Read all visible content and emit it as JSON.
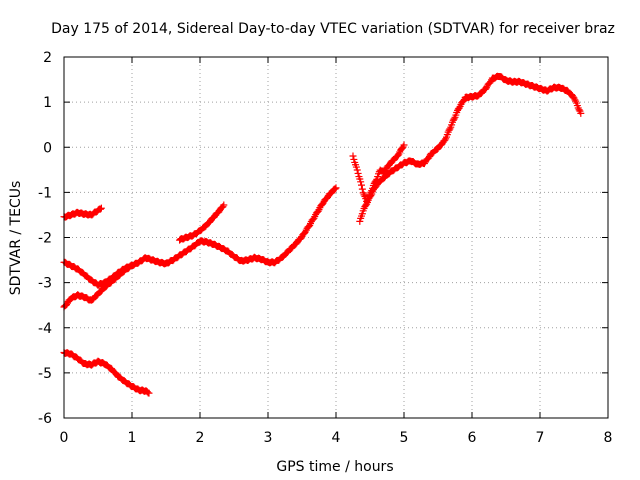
{
  "chart_data": {
    "type": "scatter",
    "title": "Day 175 of 2014, Sidereal Day-to-day VTEC variation (SDTVAR) for receiver braz",
    "xlabel": "GPS time / hours",
    "ylabel": "SDTVAR / TECUs",
    "xlim": [
      0,
      8
    ],
    "ylim": [
      -6,
      2
    ],
    "x_ticks": [
      0,
      1,
      2,
      3,
      4,
      5,
      6,
      7,
      8
    ],
    "y_ticks": [
      -6,
      -5,
      -4,
      -3,
      -2,
      -1,
      0,
      1,
      2
    ],
    "x_tick_labels": [
      "0",
      "1",
      "2",
      "3",
      "4",
      "5",
      "6",
      "7",
      "8"
    ],
    "y_tick_labels": [
      "-6",
      "-5",
      "-4",
      "-3",
      "-2",
      "-1",
      "0",
      "1",
      "2"
    ],
    "grid": true,
    "grid_style": "dotted",
    "marker": "plus",
    "color": "#ff0000",
    "series": [
      {
        "points": [
          [
            0.0,
            -2.55
          ],
          [
            0.1,
            -2.62
          ],
          [
            0.2,
            -2.7
          ],
          [
            0.3,
            -2.82
          ],
          [
            0.4,
            -2.95
          ],
          [
            0.5,
            -3.05
          ],
          [
            0.6,
            -3.0
          ],
          [
            0.7,
            -2.9
          ],
          [
            0.8,
            -2.78
          ],
          [
            0.9,
            -2.68
          ],
          [
            1.0,
            -2.62
          ],
          [
            1.1,
            -2.55
          ],
          [
            1.2,
            -2.45
          ],
          [
            1.3,
            -2.5
          ],
          [
            1.4,
            -2.55
          ],
          [
            1.5,
            -2.58
          ],
          [
            1.6,
            -2.5
          ],
          [
            1.7,
            -2.4
          ],
          [
            1.8,
            -2.3
          ],
          [
            1.9,
            -2.2
          ],
          [
            2.0,
            -2.08
          ],
          [
            2.1,
            -2.1
          ],
          [
            2.2,
            -2.15
          ],
          [
            2.3,
            -2.22
          ],
          [
            2.4,
            -2.3
          ],
          [
            2.5,
            -2.42
          ],
          [
            2.6,
            -2.52
          ],
          [
            2.7,
            -2.5
          ],
          [
            2.8,
            -2.45
          ],
          [
            2.9,
            -2.48
          ],
          [
            3.0,
            -2.55
          ],
          [
            3.1,
            -2.55
          ],
          [
            3.2,
            -2.45
          ],
          [
            3.3,
            -2.3
          ],
          [
            3.4,
            -2.15
          ],
          [
            3.5,
            -1.98
          ],
          [
            3.6,
            -1.75
          ],
          [
            3.7,
            -1.5
          ],
          [
            3.8,
            -1.25
          ],
          [
            3.9,
            -1.05
          ],
          [
            4.0,
            -0.9
          ]
        ]
      },
      {
        "points": [
          [
            0.0,
            -3.55
          ],
          [
            0.05,
            -3.45
          ],
          [
            0.1,
            -3.35
          ],
          [
            0.2,
            -3.28
          ],
          [
            0.3,
            -3.32
          ],
          [
            0.4,
            -3.4
          ],
          [
            0.5,
            -3.25
          ],
          [
            0.6,
            -3.1
          ],
          [
            0.7,
            -2.98
          ],
          [
            0.8,
            -2.85
          ],
          [
            0.9,
            -2.72
          ],
          [
            1.0,
            -2.62
          ]
        ]
      },
      {
        "points": [
          [
            0.0,
            -1.55
          ],
          [
            0.1,
            -1.5
          ],
          [
            0.2,
            -1.45
          ],
          [
            0.3,
            -1.48
          ],
          [
            0.4,
            -1.5
          ],
          [
            0.45,
            -1.45
          ],
          [
            0.55,
            -1.35
          ]
        ]
      },
      {
        "points": [
          [
            0.0,
            -4.55
          ],
          [
            0.1,
            -4.58
          ],
          [
            0.2,
            -4.68
          ],
          [
            0.3,
            -4.8
          ],
          [
            0.4,
            -4.82
          ],
          [
            0.5,
            -4.75
          ],
          [
            0.6,
            -4.8
          ],
          [
            0.7,
            -4.92
          ],
          [
            0.8,
            -5.08
          ],
          [
            0.9,
            -5.2
          ],
          [
            1.0,
            -5.3
          ],
          [
            1.1,
            -5.38
          ],
          [
            1.2,
            -5.4
          ],
          [
            1.25,
            -5.45
          ]
        ]
      },
      {
        "points": [
          [
            1.7,
            -2.05
          ],
          [
            1.8,
            -2.0
          ],
          [
            1.9,
            -1.95
          ],
          [
            2.0,
            -1.85
          ],
          [
            2.1,
            -1.72
          ],
          [
            2.2,
            -1.55
          ],
          [
            2.3,
            -1.38
          ],
          [
            2.35,
            -1.28
          ]
        ]
      },
      {
        "points": [
          [
            4.25,
            -0.2
          ],
          [
            4.3,
            -0.45
          ],
          [
            4.35,
            -0.7
          ],
          [
            4.4,
            -1.0
          ],
          [
            4.45,
            -1.2
          ],
          [
            4.5,
            -1.05
          ],
          [
            4.55,
            -0.85
          ],
          [
            4.6,
            -0.7
          ],
          [
            4.65,
            -0.5
          ],
          [
            4.7,
            -0.55
          ],
          [
            4.75,
            -0.45
          ],
          [
            4.8,
            -0.35
          ],
          [
            4.9,
            -0.2
          ],
          [
            5.0,
            0.05
          ]
        ]
      },
      {
        "points": [
          [
            4.35,
            -1.65
          ],
          [
            4.4,
            -1.4
          ],
          [
            4.45,
            -1.25
          ],
          [
            4.5,
            -1.1
          ],
          [
            4.55,
            -0.95
          ],
          [
            4.6,
            -0.82
          ],
          [
            4.7,
            -0.68
          ],
          [
            4.8,
            -0.55
          ],
          [
            4.9,
            -0.45
          ],
          [
            5.0,
            -0.35
          ],
          [
            5.1,
            -0.3
          ],
          [
            5.2,
            -0.38
          ],
          [
            5.3,
            -0.35
          ],
          [
            5.4,
            -0.15
          ],
          [
            5.5,
            -0.02
          ],
          [
            5.6,
            0.15
          ],
          [
            5.7,
            0.5
          ],
          [
            5.8,
            0.85
          ],
          [
            5.9,
            1.1
          ],
          [
            6.0,
            1.12
          ],
          [
            6.1,
            1.15
          ],
          [
            6.2,
            1.3
          ],
          [
            6.3,
            1.52
          ],
          [
            6.4,
            1.58
          ],
          [
            6.5,
            1.48
          ],
          [
            6.6,
            1.45
          ],
          [
            6.7,
            1.45
          ],
          [
            6.8,
            1.4
          ],
          [
            6.9,
            1.35
          ],
          [
            7.0,
            1.3
          ],
          [
            7.1,
            1.25
          ],
          [
            7.2,
            1.32
          ],
          [
            7.3,
            1.32
          ],
          [
            7.4,
            1.25
          ],
          [
            7.5,
            1.1
          ],
          [
            7.6,
            0.75
          ]
        ]
      }
    ]
  }
}
